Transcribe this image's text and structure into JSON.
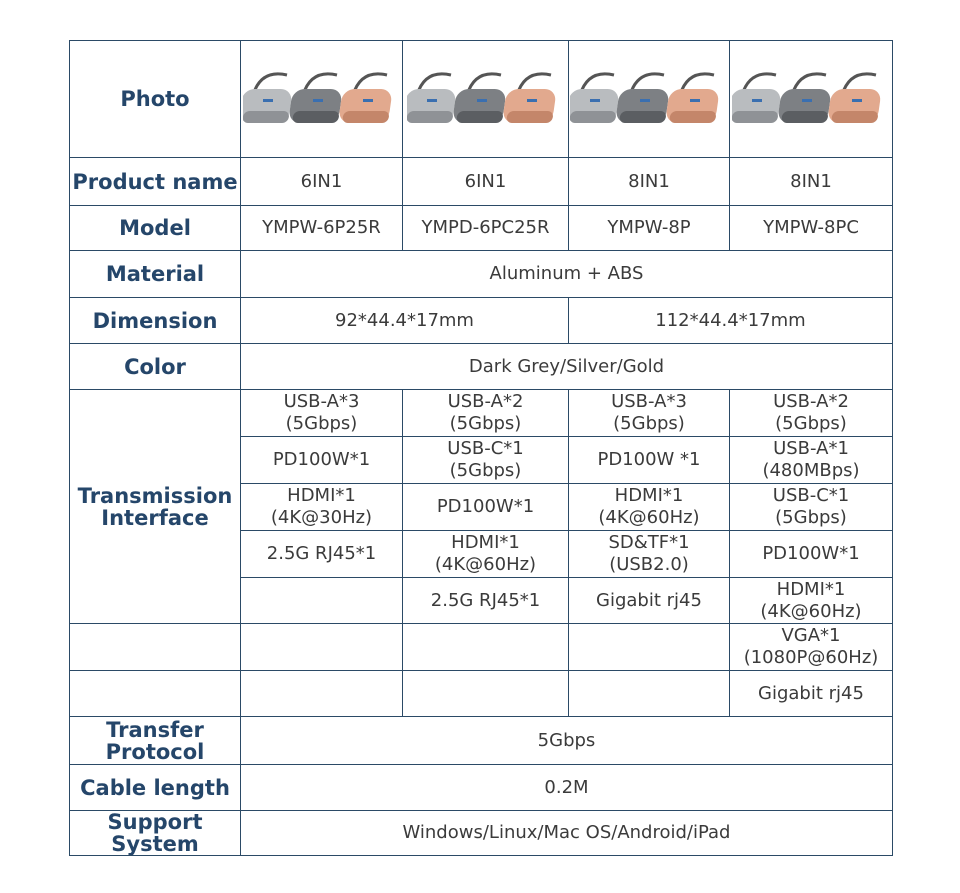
{
  "table": {
    "rows": [
      {
        "label": "Photo"
      },
      {
        "label": "Product name",
        "cells": [
          "6IN1",
          "6IN1",
          "8IN1",
          "8IN1"
        ]
      },
      {
        "label": "Model",
        "cells": [
          "YMPW-6P25R",
          "YMPD-6PC25R",
          "YMPW-8P",
          "YMPW-8PC"
        ]
      },
      {
        "label": "Material",
        "cells": [
          "Aluminum + ABS"
        ]
      },
      {
        "label": "Dimension",
        "cells": [
          "92*44.4*17mm",
          "112*44.4*17mm"
        ]
      },
      {
        "label": "Color",
        "cells": [
          "Dark Grey/Silver/Gold"
        ]
      },
      {
        "label": "Transmission\nInterface",
        "interfaces": [
          [
            "USB-A*3\n(5Gbps)",
            "USB-A*2\n(5Gbps)",
            "USB-A*3\n(5Gbps)",
            "USB-A*2\n(5Gbps)"
          ],
          [
            "PD100W*1",
            "USB-C*1\n(5Gbps)",
            "PD100W *1",
            "USB-A*1\n(480MBps)"
          ],
          [
            "HDMI*1\n(4K@30Hz)",
            "PD100W*1",
            "HDMI*1\n(4K@60Hz)",
            "USB-C*1\n(5Gbps)"
          ],
          [
            "2.5G RJ45*1",
            "HDMI*1\n(4K@60Hz)",
            "SD&TF*1\n(USB2.0)",
            "PD100W*1"
          ],
          [
            null,
            "2.5G RJ45*1",
            "Gigabit rj45",
            "HDMI*1\n(4K@60Hz)"
          ],
          [
            null,
            null,
            null,
            "VGA*1\n(1080P@60Hz)"
          ],
          [
            null,
            null,
            null,
            "Gigabit rj45"
          ]
        ]
      },
      {
        "label": "Transfer\nProtocol",
        "cells": [
          "5Gbps"
        ]
      },
      {
        "label": "Cable length",
        "cells": [
          "0.2M"
        ]
      },
      {
        "label": "Support\nSystem",
        "cells": [
          "Windows/Linux/Mac OS/Android/iPad"
        ]
      }
    ]
  }
}
